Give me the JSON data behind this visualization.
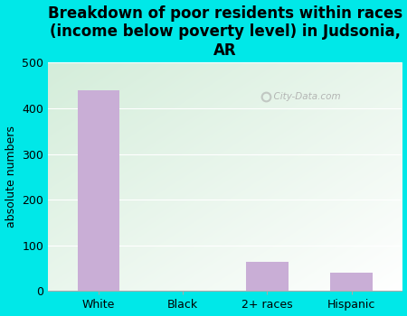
{
  "categories": [
    "White",
    "Black",
    "2+ races",
    "Hispanic"
  ],
  "values": [
    440,
    0,
    65,
    40
  ],
  "bar_color": "#c9aed6",
  "title": "Breakdown of poor residents within races\n(income below poverty level) in Judsonia,\nAR",
  "ylabel": "absolute numbers",
  "ylim": [
    0,
    500
  ],
  "yticks": [
    0,
    100,
    200,
    300,
    400,
    500
  ],
  "bg_color": "#00e8e8",
  "title_fontsize": 12,
  "label_fontsize": 9,
  "watermark": "City-Data.com"
}
